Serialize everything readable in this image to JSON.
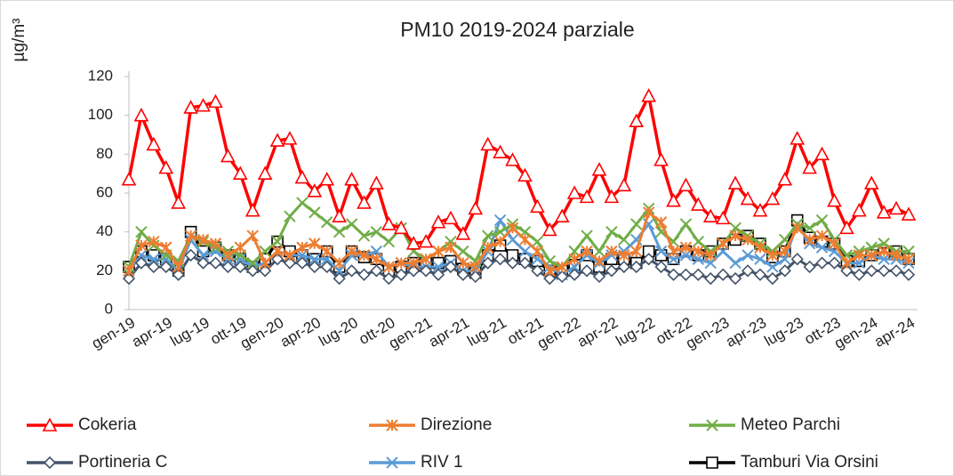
{
  "chart_data": {
    "type": "line",
    "title": "PM10 2019-2024 parziale",
    "y_label": "µg/m³",
    "categories": [
      "gen-19",
      null,
      null,
      "apr-19",
      null,
      null,
      "lug-19",
      null,
      null,
      "ott-19",
      null,
      null,
      "gen-20",
      null,
      null,
      "apr-20",
      null,
      null,
      "lug-20",
      null,
      null,
      "ott-20",
      null,
      null,
      "gen-21",
      null,
      null,
      "apr-21",
      null,
      null,
      "lug-21",
      null,
      null,
      "ott-21",
      null,
      null,
      "gen-22",
      null,
      null,
      "apr-22",
      null,
      null,
      "lug-22",
      null,
      null,
      "ott-22",
      null,
      null,
      "gen-23",
      null,
      null,
      "apr-23",
      null,
      null,
      "lug-23",
      null,
      null,
      "ott-23",
      null,
      null,
      "gen-24",
      null,
      null,
      "apr-24"
    ],
    "ylim": [
      0,
      120
    ],
    "yticks": [
      0,
      20,
      40,
      60,
      80,
      100,
      120
    ],
    "grid": false,
    "legend": "bottom",
    "series": [
      {
        "name": "Cokeria",
        "color": "#ff0000",
        "marker": "triangle",
        "values": [
          67,
          100,
          85,
          73,
          55,
          104,
          105,
          107,
          79,
          70,
          51,
          70,
          87,
          88,
          68,
          61,
          67,
          48,
          67,
          55,
          65,
          44,
          42,
          34,
          35,
          45,
          47,
          39,
          52,
          85,
          81,
          77,
          69,
          53,
          41,
          48,
          60,
          58,
          72,
          58,
          64,
          97,
          110,
          77,
          56,
          64,
          54,
          48,
          47,
          65,
          57,
          51,
          57,
          67,
          88,
          73,
          80,
          56,
          42,
          51,
          65,
          50,
          52,
          49
        ]
      },
      {
        "name": "Direzione",
        "color": "#ed7d31",
        "marker": "star",
        "values": [
          20,
          33,
          35,
          32,
          22,
          38,
          36,
          34,
          28,
          32,
          38,
          24,
          30,
          28,
          32,
          34,
          30,
          24,
          30,
          28,
          26,
          22,
          24,
          24,
          26,
          30,
          32,
          24,
          22,
          32,
          35,
          42,
          36,
          30,
          20,
          22,
          26,
          30,
          25,
          30,
          28,
          30,
          50,
          45,
          30,
          32,
          30,
          28,
          34,
          38,
          36,
          32,
          28,
          30,
          42,
          36,
          38,
          34,
          24,
          28,
          28,
          30,
          28,
          26
        ]
      },
      {
        "name": "Meteo Parchi",
        "color": "#70ad47",
        "marker": "x",
        "values": [
          22,
          40,
          33,
          28,
          25,
          38,
          35,
          32,
          30,
          28,
          24,
          30,
          35,
          48,
          55,
          50,
          45,
          40,
          44,
          38,
          40,
          35,
          42,
          30,
          26,
          30,
          35,
          30,
          25,
          38,
          40,
          44,
          40,
          35,
          25,
          22,
          30,
          38,
          30,
          40,
          36,
          44,
          52,
          40,
          35,
          44,
          35,
          30,
          34,
          42,
          38,
          34,
          30,
          36,
          44,
          42,
          46,
          36,
          28,
          30,
          32,
          34,
          30,
          30
        ]
      },
      {
        "name": "Portineria C",
        "color": "#44546a",
        "marker": "diamond",
        "values": [
          16,
          24,
          22,
          22,
          18,
          28,
          24,
          24,
          22,
          22,
          20,
          20,
          26,
          24,
          24,
          22,
          22,
          16,
          20,
          18,
          20,
          16,
          18,
          20,
          20,
          18,
          22,
          18,
          17,
          24,
          26,
          24,
          24,
          20,
          16,
          17,
          18,
          20,
          17,
          20,
          22,
          22,
          26,
          22,
          18,
          18,
          18,
          16,
          18,
          16,
          20,
          18,
          16,
          20,
          26,
          22,
          24,
          24,
          20,
          18,
          20,
          20,
          20,
          18
        ]
      },
      {
        "name": "RIV 1",
        "color": "#5b9bd5",
        "marker": "x",
        "values": [
          20,
          28,
          26,
          26,
          20,
          36,
          28,
          30,
          26,
          26,
          22,
          24,
          30,
          28,
          28,
          26,
          26,
          20,
          28,
          28,
          30,
          22,
          24,
          22,
          22,
          22,
          24,
          20,
          20,
          30,
          46,
          36,
          30,
          26,
          22,
          18,
          22,
          28,
          24,
          28,
          30,
          36,
          44,
          30,
          26,
          28,
          26,
          24,
          30,
          24,
          28,
          26,
          22,
          26,
          44,
          34,
          32,
          30,
          24,
          24,
          28,
          26,
          26,
          24
        ]
      },
      {
        "name": "Tamburi  Via Orsini",
        "color": "#000000",
        "marker": "square",
        "values": [
          22,
          30,
          28,
          26,
          20,
          40,
          30,
          32,
          28,
          26,
          22,
          26,
          35,
          30,
          28,
          26,
          30,
          22,
          30,
          27,
          26,
          20,
          22,
          24,
          24,
          24,
          25,
          21,
          19,
          28,
          33,
          28,
          26,
          25,
          20,
          20,
          23,
          28,
          22,
          26,
          26,
          24,
          30,
          28,
          26,
          30,
          28,
          30,
          34,
          36,
          38,
          34,
          27,
          30,
          46,
          37,
          35,
          34,
          25,
          25,
          28,
          29,
          30,
          26
        ]
      }
    ]
  }
}
